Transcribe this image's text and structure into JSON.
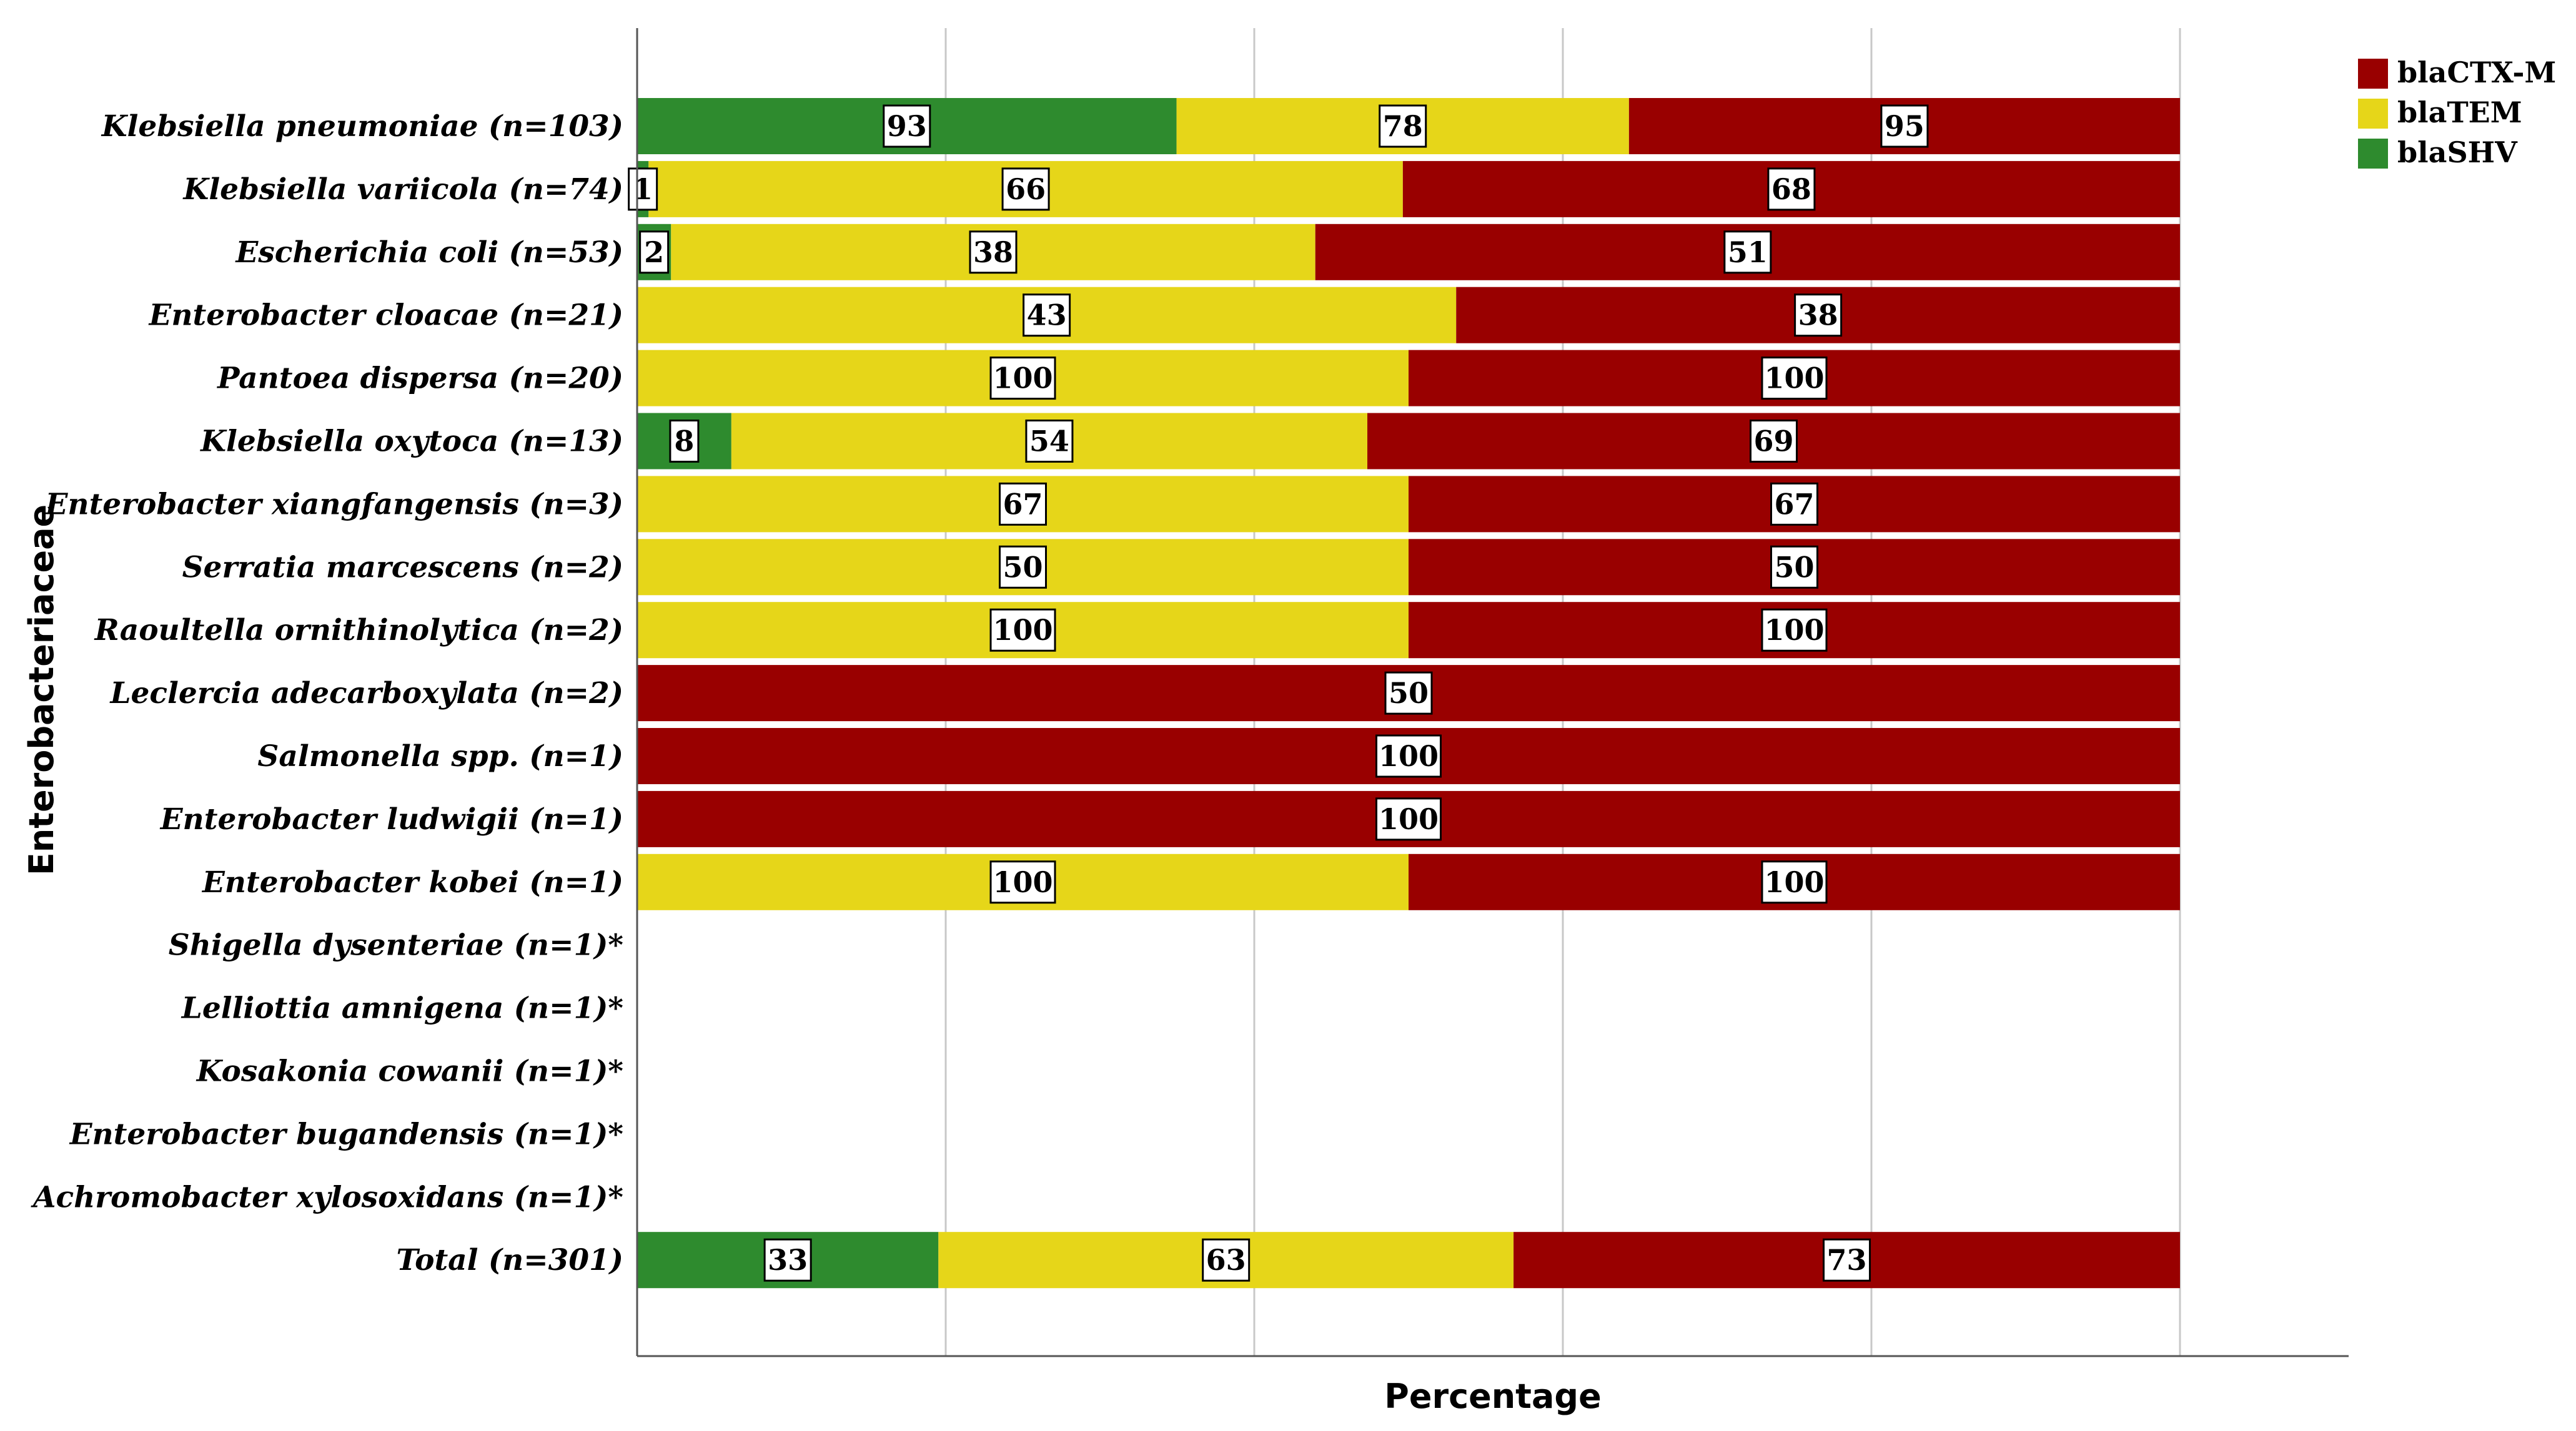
{
  "chart_data": {
    "type": "bar",
    "orientation": "horizontal",
    "stacked": true,
    "xlabel": "Percentage",
    "ylabel": "Enterobacteriaceae",
    "grid": true,
    "legend_position": "top-right",
    "categories": [
      "Klebsiella pneumoniae (n=103)",
      "Klebsiella variicola (n=74)",
      "Escherichia coli (n=53)",
      "Enterobacter cloacae (n=21)",
      "Pantoea dispersa (n=20)",
      "Klebsiella oxytoca (n=13)",
      "Enterobacter xiangfangensis (n=3)",
      "Serratia marcescens (n=2)",
      "Raoultella ornithinolytica (n=2)",
      "Leclercia adecarboxylata (n=2)",
      "Salmonella spp. (n=1)",
      "Enterobacter ludwigii (n=1)",
      "Enterobacter kobei (n=1)",
      "Shigella dysenteriae (n=1)*",
      "Lelliottia amnigena (n=1)*",
      "Kosakonia cowanii (n=1)*",
      "Enterobacter bugandensis (n=1)*",
      "Achromobacter xylosoxidans (n=1)*",
      "Total (n=301)"
    ],
    "series": [
      {
        "name": "blaSHV",
        "color": "#2e8b2e",
        "values": [
          93,
          1,
          2,
          0,
          0,
          8,
          0,
          0,
          0,
          0,
          0,
          0,
          0,
          0,
          0,
          0,
          0,
          0,
          33
        ]
      },
      {
        "name": "blaTEM",
        "color": "#e6d619",
        "values": [
          78,
          66,
          38,
          43,
          100,
          54,
          67,
          50,
          100,
          0,
          0,
          0,
          100,
          0,
          0,
          0,
          0,
          0,
          63
        ]
      },
      {
        "name": "blaCTX-M",
        "color": "#990000",
        "values": [
          95,
          68,
          51,
          38,
          100,
          69,
          67,
          50,
          100,
          50,
          100,
          100,
          100,
          0,
          0,
          0,
          0,
          0,
          73
        ]
      }
    ],
    "legend": [
      {
        "name": "blaCTX-M",
        "color": "#990000"
      },
      {
        "name": "blaTEM",
        "color": "#e6d619"
      },
      {
        "name": "blaSHV",
        "color": "#2e8b2e"
      }
    ]
  }
}
